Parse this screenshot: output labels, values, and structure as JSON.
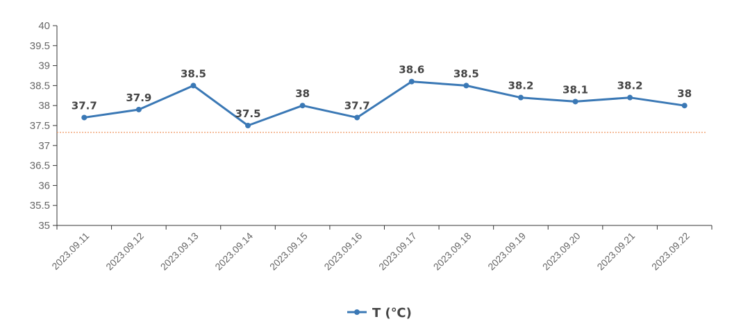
{
  "chart_data": {
    "type": "line",
    "title": "",
    "xlabel": "",
    "ylabel": "",
    "x": [
      "2023.09.11",
      "2023.09.12",
      "2023.09.13",
      "2023.09.14",
      "2023.09.15",
      "2023.09.16",
      "2023.09.17",
      "2023.09.18",
      "2023.09.19",
      "2023.09.20",
      "2023.09.21",
      "2023.09.22"
    ],
    "series": [
      {
        "name": "T (℃)",
        "values": [
          37.7,
          37.9,
          38.5,
          37.5,
          38,
          37.7,
          38.6,
          38.5,
          38.2,
          38.1,
          38.2,
          38
        ],
        "color": "#3a78b5",
        "labels": [
          "37.7",
          "37.9",
          "38.5",
          "37.5",
          "38",
          "37.7",
          "38.6",
          "38.5",
          "38.2",
          "38.1",
          "38.2",
          "38"
        ]
      }
    ],
    "ylim": [
      35,
      40
    ],
    "yticks": [
      35,
      35.5,
      36,
      36.5,
      37,
      37.5,
      38,
      38.5,
      39,
      39.5,
      40
    ],
    "ytick_labels": [
      "35",
      "35.5",
      "36",
      "36.5",
      "37",
      "37.5",
      "38",
      "38.5",
      "39",
      "39.5",
      "40"
    ],
    "reference_line": {
      "value": 37.33,
      "color": "#f0a070",
      "style": "dotted"
    },
    "axis_color": "#333333",
    "grid": false,
    "legend": {
      "position": "bottom-center"
    }
  }
}
